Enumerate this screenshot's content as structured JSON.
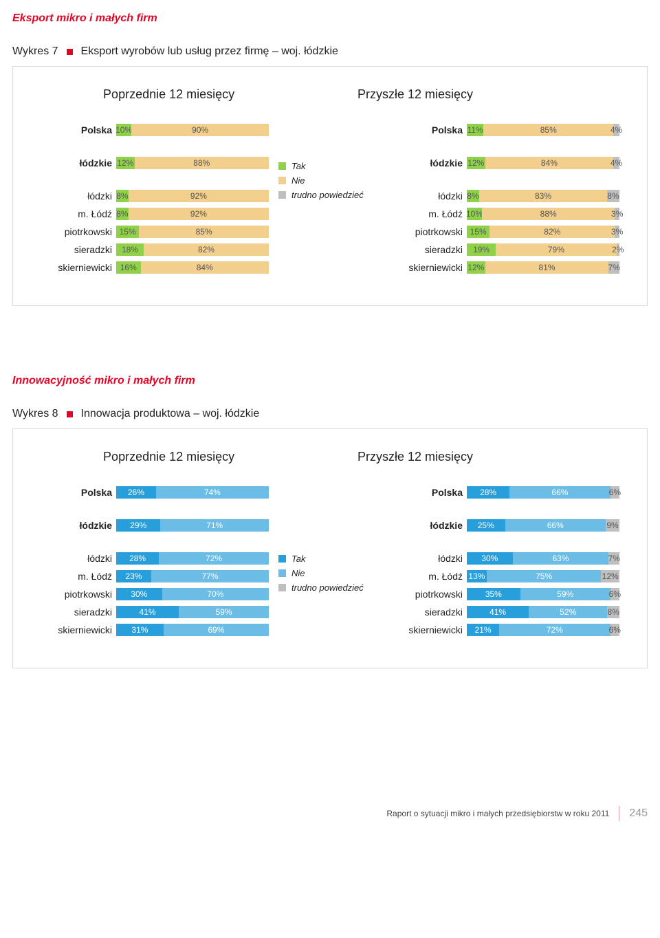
{
  "section1": {
    "title": "Eksport mikro i małych firm",
    "chart_label": "Wykres 7",
    "chart_title": "Eksport wyrobów lub usług przez firmę – woj. łódzkie",
    "subhead_left": "Poprzednie 12 miesięcy",
    "subhead_right": "Przyszłe 12 miesięcy",
    "legend": {
      "tak": "Tak",
      "nie": "Nie",
      "trudno": "trudno powiedzieć"
    },
    "colors": {
      "tak": "#8fd24a",
      "nie": "#f2cf8c",
      "trudno": "#bfbfbf"
    },
    "left": [
      {
        "label": "Polska",
        "vals": [
          10,
          90
        ],
        "gap": true
      },
      {
        "label": "łódzkie",
        "vals": [
          12,
          88
        ],
        "gap": true
      },
      {
        "label": "łódzki",
        "vals": [
          8,
          92
        ]
      },
      {
        "label": "m. Łódź",
        "vals": [
          8,
          92
        ]
      },
      {
        "label": "piotrkowski",
        "vals": [
          15,
          85
        ]
      },
      {
        "label": "sieradzki",
        "vals": [
          18,
          82
        ]
      },
      {
        "label": "skierniewicki",
        "vals": [
          16,
          84
        ]
      }
    ],
    "right": [
      {
        "label": "Polska",
        "vals": [
          11,
          85,
          4
        ],
        "gap": true
      },
      {
        "label": "łódzkie",
        "vals": [
          12,
          84,
          4
        ],
        "gap": true
      },
      {
        "label": "łódzki",
        "vals": [
          8,
          83,
          8
        ]
      },
      {
        "label": "m. Łódź",
        "vals": [
          10,
          88,
          3
        ]
      },
      {
        "label": "piotrkowski",
        "vals": [
          15,
          82,
          3
        ]
      },
      {
        "label": "sieradzki",
        "vals": [
          19,
          79,
          2
        ]
      },
      {
        "label": "skierniewicki",
        "vals": [
          12,
          81,
          7
        ]
      }
    ]
  },
  "section2": {
    "title": "Innowacyjność mikro i małych firm",
    "chart_label": "Wykres 8",
    "chart_title": "Innowacja produktowa – woj. łódzkie",
    "subhead_left": "Poprzednie 12 miesięcy",
    "subhead_right": "Przyszłe 12 miesięcy",
    "legend": {
      "tak": "Tak",
      "nie": "Nie",
      "trudno": "trudno powiedzieć"
    },
    "colors": {
      "tak": "#289fdb",
      "nie": "#6bbde6",
      "trudno": "#bfbfbf"
    },
    "white_text": true,
    "left": [
      {
        "label": "Polska",
        "vals": [
          26,
          74
        ],
        "gap": true
      },
      {
        "label": "łódzkie",
        "vals": [
          29,
          71
        ],
        "gap": true
      },
      {
        "label": "łódzki",
        "vals": [
          28,
          72
        ]
      },
      {
        "label": "m. Łódź",
        "vals": [
          23,
          77
        ]
      },
      {
        "label": "piotrkowski",
        "vals": [
          30,
          70
        ]
      },
      {
        "label": "sieradzki",
        "vals": [
          41,
          59
        ]
      },
      {
        "label": "skierniewicki",
        "vals": [
          31,
          69
        ]
      }
    ],
    "right": [
      {
        "label": "Polska",
        "vals": [
          28,
          66,
          6
        ],
        "gap": true
      },
      {
        "label": "łódzkie",
        "vals": [
          25,
          66,
          9
        ],
        "gap": true
      },
      {
        "label": "łódzki",
        "vals": [
          30,
          63,
          7
        ]
      },
      {
        "label": "m. Łódź",
        "vals": [
          13,
          75,
          12
        ]
      },
      {
        "label": "piotrkowski",
        "vals": [
          35,
          59,
          6
        ]
      },
      {
        "label": "sieradzki",
        "vals": [
          41,
          52,
          8
        ]
      },
      {
        "label": "skierniewicki",
        "vals": [
          21,
          72,
          6
        ]
      }
    ]
  },
  "footer": {
    "text": "Raport o sytuacji mikro i małych przedsiębiorstw w roku 2011",
    "page": "245"
  }
}
